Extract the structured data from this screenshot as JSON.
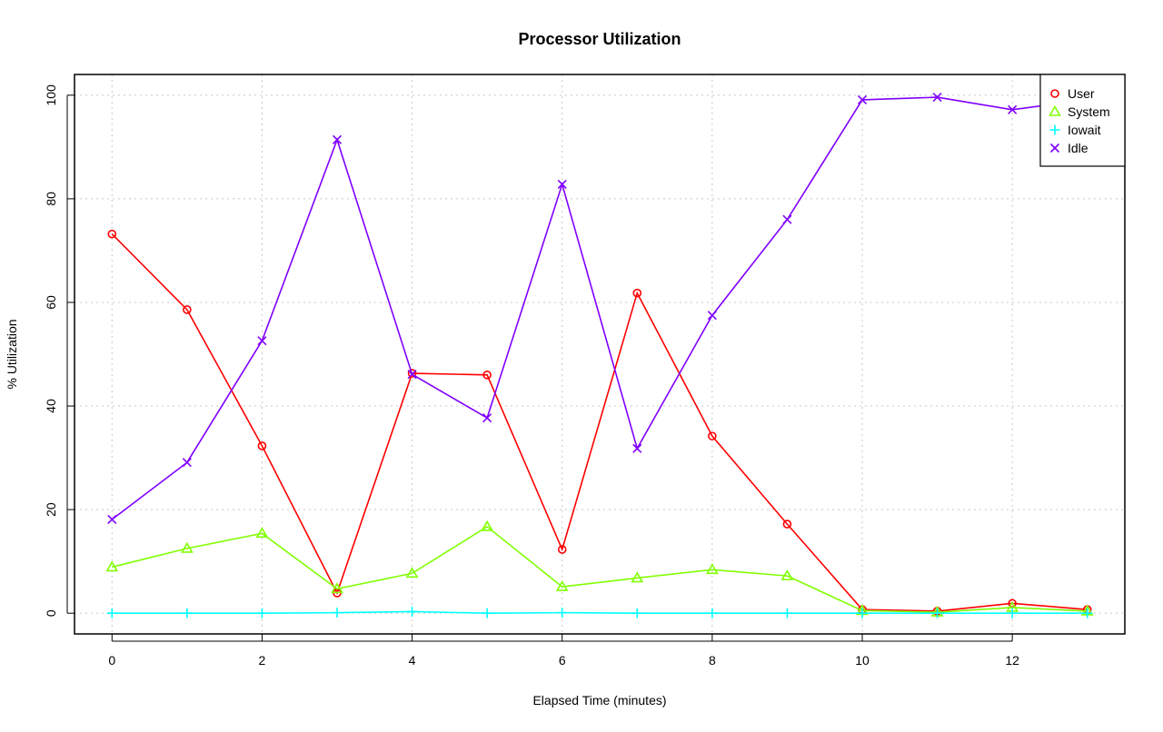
{
  "chart_data": {
    "type": "line",
    "title": "Processor Utilization",
    "xlabel": "Elapsed Time (minutes)",
    "ylabel": "% Utilization",
    "x": [
      0,
      1,
      2,
      3,
      4,
      5,
      6,
      7,
      8,
      9,
      10,
      11,
      12,
      13
    ],
    "xlim": [
      -0.5,
      13.5
    ],
    "ylim": [
      -4,
      104
    ],
    "xticks": [
      0,
      2,
      4,
      6,
      8,
      10,
      12
    ],
    "yticks": [
      0,
      20,
      40,
      60,
      80,
      100
    ],
    "grid": true,
    "legend_position": "top-right",
    "series": [
      {
        "name": "User",
        "color": "#ff0000",
        "marker": "circle",
        "values": [
          73.2,
          58.6,
          32.3,
          3.9,
          46.3,
          46.0,
          12.3,
          61.8,
          34.2,
          17.2,
          0.7,
          0.4,
          1.9,
          0.7
        ]
      },
      {
        "name": "System",
        "color": "#80ff00",
        "marker": "triangle",
        "values": [
          8.9,
          12.5,
          15.4,
          4.7,
          7.7,
          16.7,
          5.1,
          6.8,
          8.4,
          7.2,
          0.5,
          0.2,
          1.1,
          0.4
        ]
      },
      {
        "name": "Iowait",
        "color": "#00ffff",
        "marker": "plus",
        "values": [
          0,
          0,
          0,
          0.1,
          0.3,
          0,
          0.1,
          0,
          0,
          0,
          0,
          0,
          0,
          0
        ]
      },
      {
        "name": "Idle",
        "color": "#8000ff",
        "marker": "cross",
        "values": [
          18.1,
          29.1,
          52.6,
          91.4,
          46.1,
          37.7,
          82.8,
          31.8,
          57.5,
          76.0,
          99.1,
          99.6,
          97.2,
          99.1
        ]
      }
    ]
  }
}
